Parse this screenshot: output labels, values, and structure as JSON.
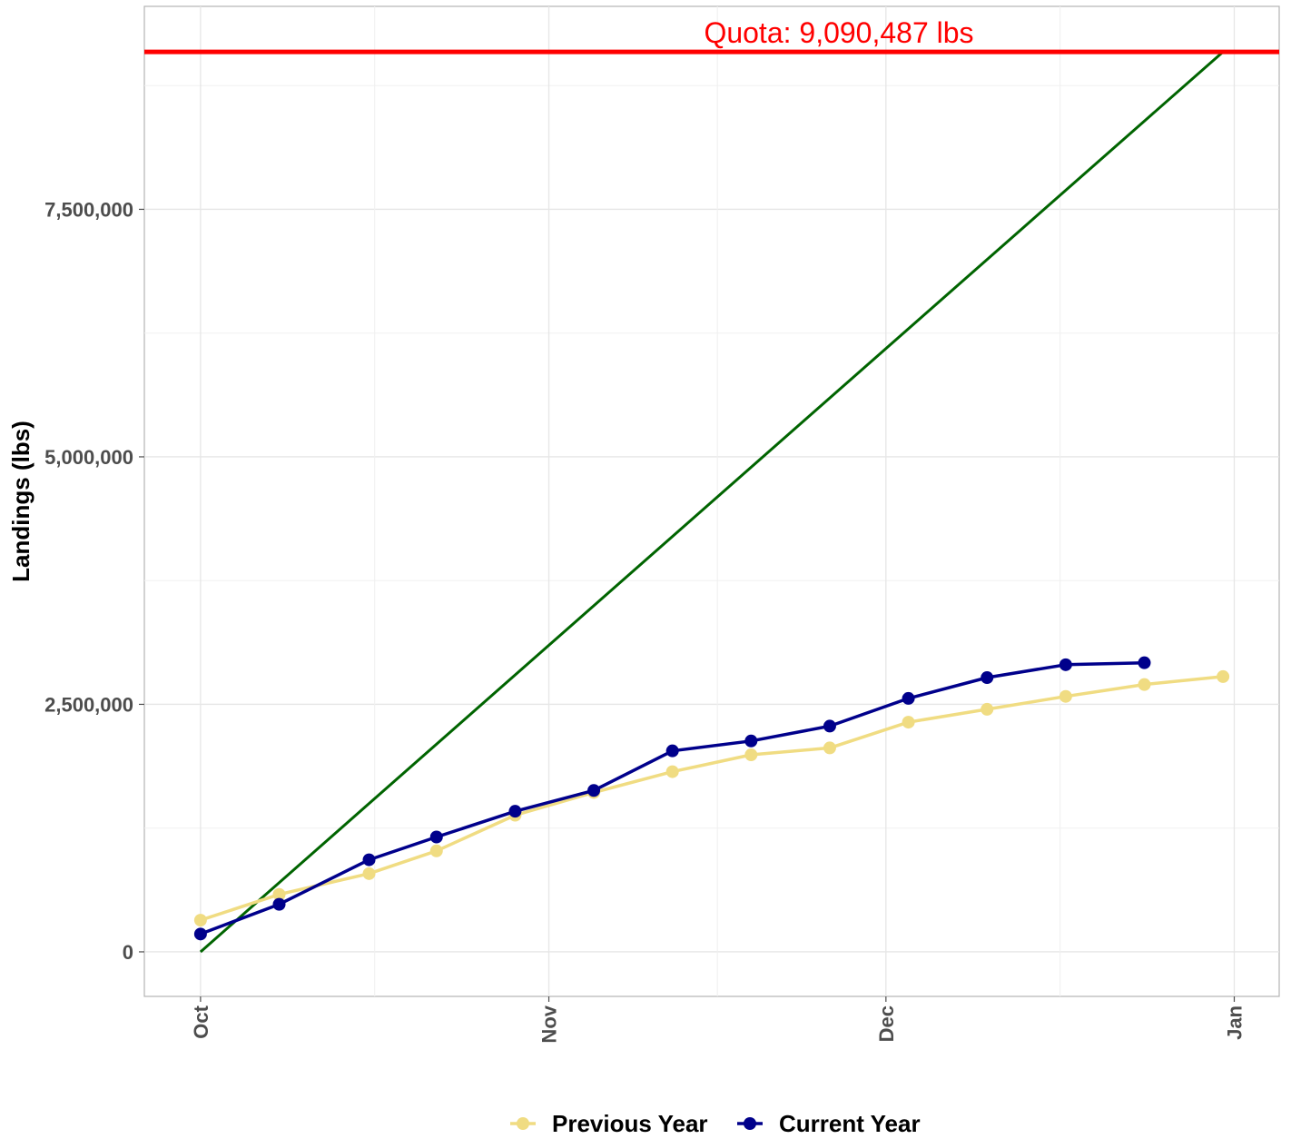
{
  "chart_data": {
    "type": "line",
    "ylabel": "Landings (lbs)",
    "xlabel": "",
    "title": "",
    "x_ticks": [
      "Oct",
      "Nov",
      "Dec",
      "Jan"
    ],
    "y_ticks": [
      "0",
      "2,500,000",
      "5,000,000",
      "7,500,000"
    ],
    "y_tick_values": [
      0,
      2500000,
      5000000,
      7500000
    ],
    "ylim": [
      -450000,
      9550000
    ],
    "xlim_days": [
      -5,
      96
    ],
    "x_tick_days": [
      0,
      31,
      61,
      92
    ],
    "grid": true,
    "legend_position": "bottom",
    "quota": {
      "value": 9090487,
      "label": "Quota: 9,090,487 lbs",
      "color": "#ff0000"
    },
    "projection": {
      "color": "#006400",
      "points": [
        {
          "x": "Oct 1",
          "y": 0
        },
        {
          "x": "Dec 31",
          "y": 9090487
        }
      ]
    },
    "series": [
      {
        "name": "Previous Year",
        "color": "#f0dc82",
        "points": [
          {
            "x": "Oct 1",
            "y": 320000
          },
          {
            "x": "Oct 8",
            "y": 580000
          },
          {
            "x": "Oct 16",
            "y": 790000
          },
          {
            "x": "Oct 22",
            "y": 1020000
          },
          {
            "x": "Oct 29",
            "y": 1380000
          },
          {
            "x": "Nov 5",
            "y": 1610000
          },
          {
            "x": "Nov 12",
            "y": 1820000
          },
          {
            "x": "Nov 19",
            "y": 1990000
          },
          {
            "x": "Nov 26",
            "y": 2060000
          },
          {
            "x": "Dec 3",
            "y": 2320000
          },
          {
            "x": "Dec 10",
            "y": 2450000
          },
          {
            "x": "Dec 17",
            "y": 2580000
          },
          {
            "x": "Dec 24",
            "y": 2700000
          },
          {
            "x": "Dec 31",
            "y": 2780000
          }
        ]
      },
      {
        "name": "Current Year",
        "color": "#00008b",
        "points": [
          {
            "x": "Oct 1",
            "y": 180000
          },
          {
            "x": "Oct 8",
            "y": 480000
          },
          {
            "x": "Oct 16",
            "y": 930000
          },
          {
            "x": "Oct 22",
            "y": 1160000
          },
          {
            "x": "Oct 29",
            "y": 1420000
          },
          {
            "x": "Nov 5",
            "y": 1630000
          },
          {
            "x": "Nov 12",
            "y": 2030000
          },
          {
            "x": "Nov 19",
            "y": 2130000
          },
          {
            "x": "Nov 26",
            "y": 2280000
          },
          {
            "x": "Dec 3",
            "y": 2560000
          },
          {
            "x": "Dec 10",
            "y": 2770000
          },
          {
            "x": "Dec 17",
            "y": 2900000
          },
          {
            "x": "Dec 24",
            "y": 2920000
          }
        ]
      }
    ]
  }
}
